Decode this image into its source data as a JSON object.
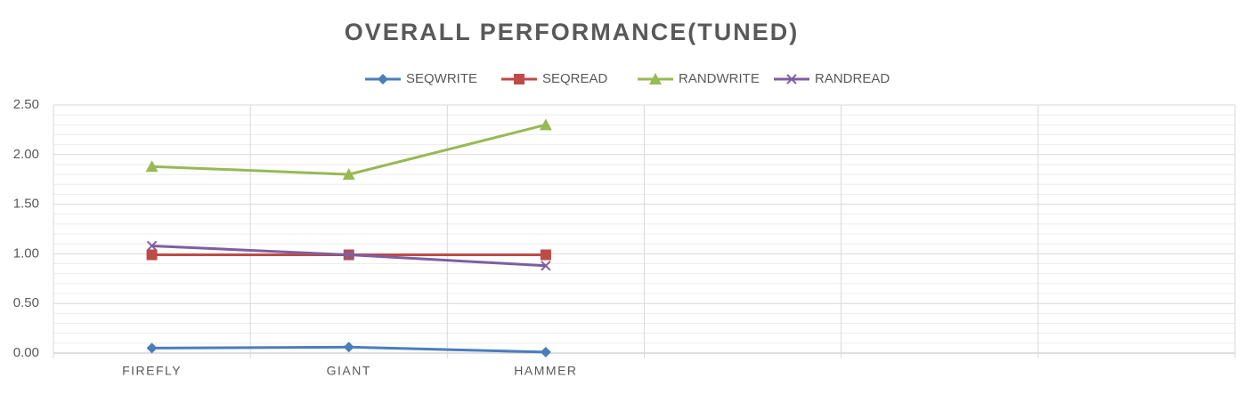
{
  "chart_data": {
    "type": "line",
    "title": "OVERALL PERFORMANCE(TUNED)",
    "categories": [
      "FIREFLY",
      "GIANT",
      "HAMMER",
      null,
      null,
      null
    ],
    "series": [
      {
        "name": "SEQWRITE",
        "color": "#4a7ebb",
        "marker": "diamond",
        "values": [
          0.05,
          0.06,
          0.01,
          null,
          null,
          null
        ]
      },
      {
        "name": "SEQREAD",
        "color": "#be4b48",
        "marker": "square",
        "values": [
          0.99,
          0.99,
          0.99,
          null,
          null,
          null
        ]
      },
      {
        "name": "RANDWRITE",
        "color": "#98b954",
        "marker": "triangle",
        "values": [
          1.88,
          1.8,
          2.3,
          null,
          null,
          null
        ]
      },
      {
        "name": "RANDREAD",
        "color": "#7d5fa0",
        "marker": "x",
        "values": [
          1.08,
          0.99,
          0.88,
          null,
          null,
          null
        ]
      }
    ],
    "ylim": [
      0,
      2.5
    ],
    "yticks": [
      {
        "value": 0,
        "label": "0.00"
      },
      {
        "value": 0.5,
        "label": "0.50"
      },
      {
        "value": 1,
        "label": "1.00"
      },
      {
        "value": 1.5,
        "label": "1.50"
      },
      {
        "value": 2,
        "label": "2.00"
      },
      {
        "value": 2.5,
        "label": "2.50"
      }
    ],
    "grid": true,
    "legend": "top"
  }
}
